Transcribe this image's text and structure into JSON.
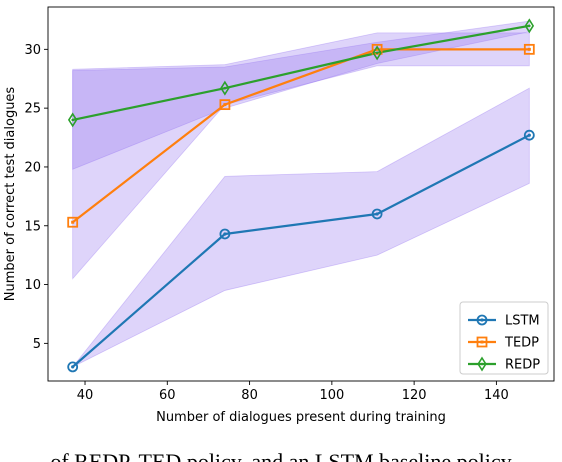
{
  "chart_data": {
    "type": "line",
    "xlabel": "Number of dialogues present during training",
    "ylabel": "Number of correct test dialogues",
    "xlim": [
      31,
      154
    ],
    "ylim": [
      1.8,
      33.6
    ],
    "xticks": [
      40,
      60,
      80,
      100,
      120,
      140
    ],
    "yticks": [
      5,
      10,
      15,
      20,
      25,
      30
    ],
    "x": [
      37,
      74,
      111,
      148
    ],
    "grid": false,
    "legend_position": "bottom-right",
    "series": [
      {
        "name": "LSTM",
        "color": "#1f77b4",
        "marker": "circle-dot",
        "values": [
          3.0,
          14.3,
          16.0,
          22.7
        ],
        "band_lower": [
          3.0,
          9.5,
          12.5,
          18.6
        ],
        "band_upper": [
          3.0,
          19.2,
          19.6,
          26.7
        ]
      },
      {
        "name": "TEDP",
        "color": "#ff7f0e",
        "marker": "square-dot",
        "values": [
          15.3,
          25.3,
          30.0,
          30.0
        ],
        "band_lower": [
          10.5,
          25.3,
          28.6,
          28.6
        ],
        "band_upper": [
          28.3,
          28.7,
          31.4,
          31.4
        ]
      },
      {
        "name": "REDP",
        "color": "#2ca02c",
        "marker": "thin-diamond",
        "values": [
          24.0,
          26.7,
          29.7,
          32.0
        ],
        "band_lower": [
          19.8,
          25.0,
          28.8,
          31.5
        ],
        "band_upper": [
          28.2,
          28.5,
          30.6,
          32.4
        ]
      }
    ],
    "band_color": "#9370f0"
  },
  "caption": "of REDP, TED policy, and an LSTM baseline policy"
}
